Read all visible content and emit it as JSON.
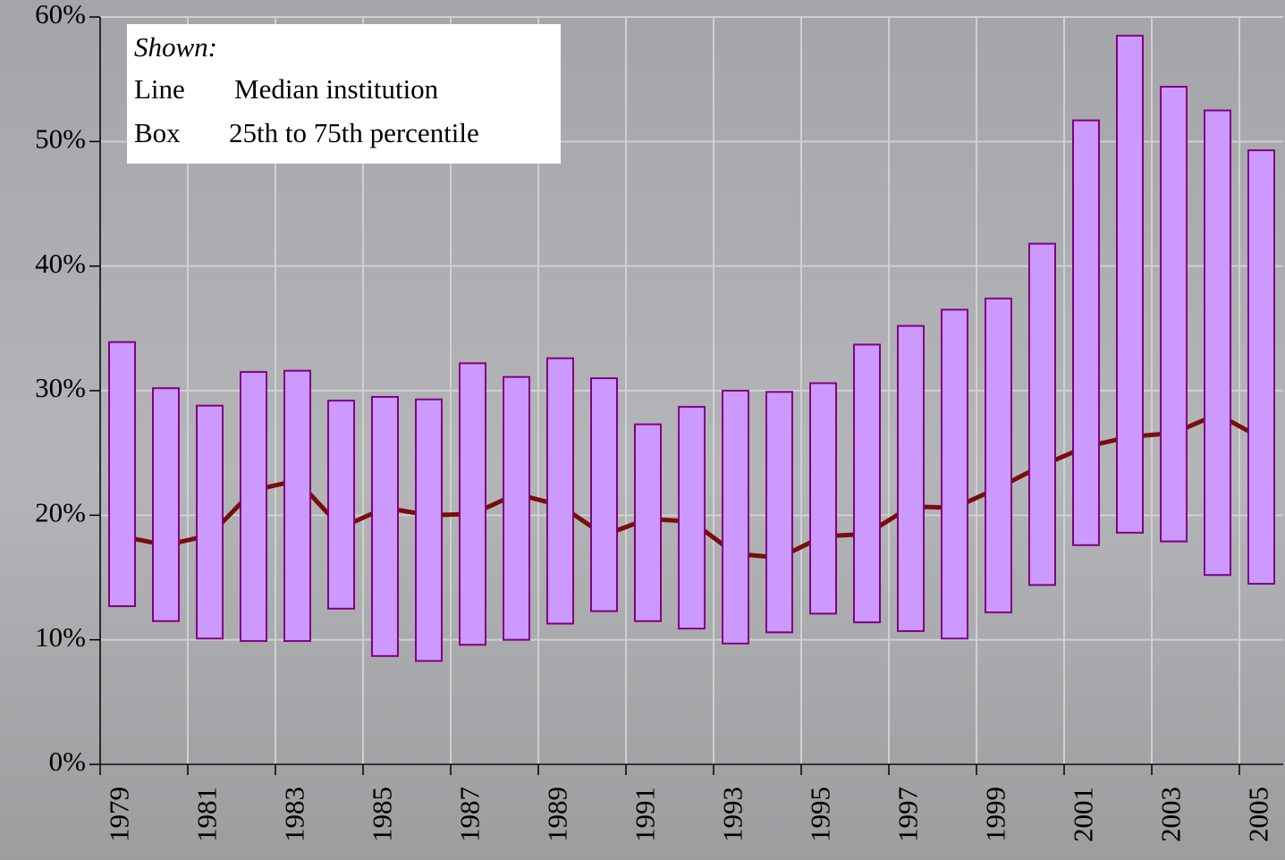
{
  "chart_data": {
    "type": "box",
    "categories": [
      "1979",
      null,
      "1981",
      null,
      "1983",
      null,
      "1985",
      null,
      "1987",
      null,
      "1989",
      null,
      "1991",
      null,
      "1993",
      null,
      "1995",
      null,
      "1997",
      null,
      "1999",
      null,
      "2001",
      null,
      "2003",
      null,
      "2005"
    ],
    "median": [
      18.3,
      17.6,
      18.4,
      22.0,
      22.8,
      19.0,
      20.6,
      20.0,
      20.1,
      21.7,
      20.8,
      18.4,
      19.7,
      19.5,
      16.9,
      16.6,
      18.3,
      18.5,
      20.7,
      20.6,
      22.2,
      24.0,
      25.5,
      26.3,
      26.6,
      28.1,
      26.2
    ],
    "q1": [
      12.7,
      11.5,
      10.1,
      9.9,
      9.9,
      12.5,
      8.7,
      8.3,
      9.6,
      10.0,
      11.3,
      12.3,
      11.5,
      10.9,
      9.7,
      10.6,
      12.1,
      11.4,
      10.7,
      10.1,
      12.2,
      14.4,
      17.6,
      18.6,
      17.9,
      15.2,
      14.5
    ],
    "q3": [
      33.9,
      30.2,
      28.8,
      31.5,
      31.6,
      29.2,
      29.5,
      29.3,
      32.2,
      31.1,
      32.6,
      31.0,
      27.3,
      28.7,
      30.0,
      29.9,
      30.6,
      33.7,
      35.2,
      36.5,
      37.4,
      41.8,
      51.7,
      58.5,
      54.4,
      52.5,
      49.3
    ],
    "line_color": "#7a0c0c",
    "box_color": "#cc99ff",
    "box_edge": "#800080",
    "ylim": [
      0,
      60
    ],
    "yticks": [
      {
        "value": 0,
        "label": "0%"
      },
      {
        "value": 10,
        "label": "10%"
      },
      {
        "value": 20,
        "label": "20%"
      },
      {
        "value": 30,
        "label": "30%"
      },
      {
        "value": 40,
        "label": "40%"
      },
      {
        "value": 50,
        "label": "50%"
      },
      {
        "value": 60,
        "label": "60%"
      }
    ],
    "grid": true,
    "legend": {
      "title": "Shown:",
      "entries": [
        {
          "key": "Line",
          "text": "Median institution"
        },
        {
          "key": "Box",
          "text": "25th to 75th percentile"
        }
      ]
    }
  }
}
